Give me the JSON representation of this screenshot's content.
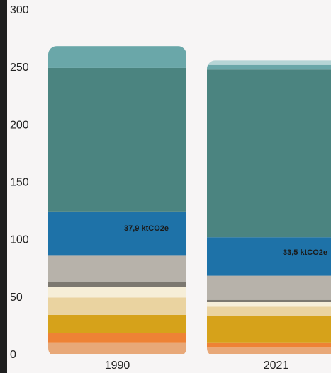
{
  "chart_data": {
    "type": "bar",
    "stacked": true,
    "categories": [
      "1990",
      "2021"
    ],
    "ylim": [
      0,
      300
    ],
    "yticks": [
      0,
      50,
      100,
      150,
      200,
      250,
      300
    ],
    "grid": false,
    "series": [
      {
        "color": "#e8a878",
        "values": [
          10,
          6
        ]
      },
      {
        "color": "#ee8235",
        "values": [
          8,
          4
        ]
      },
      {
        "color": "#d6a21a",
        "values": [
          16,
          23
        ]
      },
      {
        "color": "#ead3a0",
        "values": [
          15,
          8
        ]
      },
      {
        "color": "#f6eed8",
        "values": [
          9,
          4
        ]
      },
      {
        "color": "#7c7870",
        "values": [
          5,
          2
        ]
      },
      {
        "color": "#b7b2aa",
        "values": [
          23,
          21
        ]
      },
      {
        "color": "#1e72a8",
        "values": [
          37.9,
          33.5
        ]
      },
      {
        "color": "#4b8480",
        "values": [
          125,
          146
        ]
      },
      {
        "color": "#6aa7a9",
        "values": [
          19,
          4
        ]
      },
      {
        "color": "#b6d5d6",
        "values": [
          0,
          4
        ]
      }
    ],
    "data_labels": [
      {
        "category": "1990",
        "series_index": 7,
        "text": "37,9 ktCO2e"
      },
      {
        "category": "2021",
        "series_index": 7,
        "text": "33,5 ktCO2e"
      }
    ]
  }
}
